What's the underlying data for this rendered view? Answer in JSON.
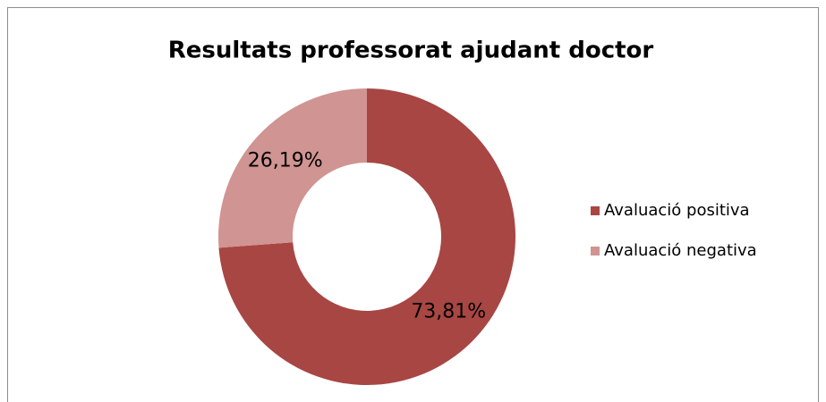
{
  "chart_data": {
    "type": "pie",
    "donut": true,
    "title": "Resultats professorat ajudant doctor",
    "categories": [
      "Avaluació positiva",
      "Avaluació negativa"
    ],
    "values": [
      73.81,
      26.19
    ],
    "value_labels": [
      "73,81%",
      "26,19%"
    ],
    "colors": [
      "#a84644",
      "#d09492"
    ],
    "legend": "right"
  }
}
